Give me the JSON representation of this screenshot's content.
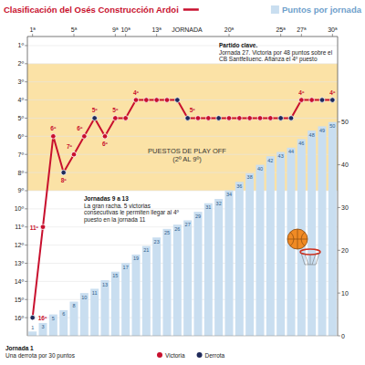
{
  "chart_data": {
    "type": "line",
    "x_label": "JORNADA",
    "categories": [
      "1ª",
      null,
      null,
      null,
      "5ª",
      null,
      null,
      null,
      "9ª",
      "10ª",
      null,
      null,
      "13ª",
      null,
      null,
      null,
      null,
      null,
      null,
      "20ª",
      null,
      null,
      null,
      null,
      "25ª",
      null,
      "27ª",
      null,
      null,
      "30ª"
    ],
    "series": [
      {
        "name": "Clasificación del Osés Construcción Ardoi",
        "type": "line",
        "color": "#c8102e",
        "marker": "circle",
        "values": [
          16,
          11,
          6,
          8,
          7,
          6,
          5,
          6,
          5,
          5,
          4,
          4,
          4,
          4,
          4,
          5,
          5,
          5,
          5,
          5,
          5,
          5,
          5,
          5,
          5,
          5,
          4,
          4,
          4,
          4
        ],
        "value_labels": [
          "16º",
          "11º",
          "6º",
          "8º",
          "7º",
          "6º",
          "5º",
          "6º",
          "5º",
          null,
          "4º",
          null,
          null,
          null,
          null,
          "5º",
          null,
          null,
          null,
          null,
          null,
          null,
          null,
          null,
          null,
          null,
          "4º",
          null,
          null,
          "4º"
        ],
        "colors": [
          "#1f2a5a",
          "#c8102e",
          "#c8102e",
          "#1f2a5a",
          "#c8102e",
          "#c8102e",
          "#1f2a5a",
          "#c8102e",
          "#c8102e",
          "#c8102e",
          "#c8102e",
          "#c8102e",
          "#c8102e",
          "#c8102e",
          "#1f2a5a",
          "#1f2a5a",
          "#c8102e",
          "#c8102e",
          "#1f2a5a",
          "#c8102e",
          "#c8102e",
          "#c8102e",
          "#c8102e",
          "#c8102e",
          "#1f2a5a",
          "#1f2a5a",
          "#c8102e",
          "#c8102e",
          "#1f2a5a",
          "#1f2a5a"
        ]
      },
      {
        "name": "Puntos por jornada",
        "type": "bar",
        "axis": "y2",
        "color": "#c9def0",
        "data_labels": true,
        "values": [
          1,
          3,
          5,
          6,
          8,
          10,
          11,
          13,
          15,
          17,
          19,
          21,
          23,
          25,
          26,
          27,
          29,
          31,
          32,
          34,
          36,
          38,
          40,
          42,
          43,
          44,
          46,
          48,
          49,
          50
        ]
      }
    ],
    "ylim": [
      17,
      0.5
    ],
    "yticks": [
      {
        "value": 1,
        "label": "1º"
      },
      {
        "value": 2,
        "label": "2º"
      },
      {
        "value": 3,
        "label": "3º"
      },
      {
        "value": 4,
        "label": "4º"
      },
      {
        "value": 5,
        "label": "5º"
      },
      {
        "value": 6,
        "label": "6º"
      },
      {
        "value": 7,
        "label": "7º"
      },
      {
        "value": 8,
        "label": "8º"
      },
      {
        "value": 9,
        "label": "9º"
      },
      {
        "value": 10,
        "label": "10º"
      },
      {
        "value": 11,
        "label": "11º"
      },
      {
        "value": 12,
        "label": "12º"
      },
      {
        "value": 13,
        "label": "13º"
      },
      {
        "value": 14,
        "label": "14º"
      },
      {
        "value": 15,
        "label": "15º"
      },
      {
        "value": 16,
        "label": "16º"
      }
    ],
    "y2lim": [
      0,
      70
    ],
    "y2ticks": [
      0,
      10,
      20,
      30,
      40,
      50
    ],
    "grid": true,
    "band": {
      "from": 2,
      "to": 9,
      "label": "PUESTOS DE PLAY OFF (2º AL 9º)"
    },
    "marker_legend": [
      {
        "name": "Victoria",
        "color": "#c8102e"
      },
      {
        "name": "Derrota",
        "color": "#1f2a5a"
      }
    ],
    "annotations": [
      {
        "title": "Partido clave.",
        "text": "Jornada 27. Victoria por 48 puntos sobre el CB Santfeliuenc. Afianza el 4º puesto"
      },
      {
        "title": "Jornadas 9 a 13",
        "text": "La gran racha. 5 victorias consecutivas le permiten llegar al 4º puesto en la jornada 11"
      },
      {
        "title": "Jornada 1",
        "text": "Una derrota por 30 puntos"
      }
    ]
  }
}
